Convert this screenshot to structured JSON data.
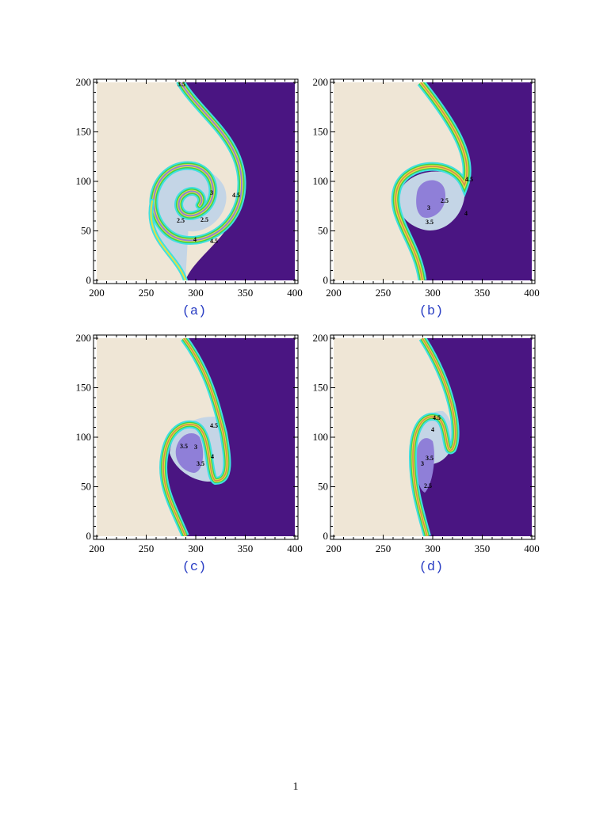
{
  "figures": [
    {
      "caption": "(a)",
      "xlim": [
        200,
        400
      ],
      "ylim": [
        0,
        200
      ],
      "xticks": [
        200,
        250,
        300,
        350,
        400
      ],
      "yticks": [
        0,
        50,
        100,
        150,
        200
      ],
      "contour_labels": [
        3.5,
        3,
        4.5,
        2.5,
        2.5,
        4,
        4.5
      ]
    },
    {
      "caption": "(b)",
      "xlim": [
        200,
        400
      ],
      "ylim": [
        0,
        200
      ],
      "xticks": [
        200,
        250,
        300,
        350,
        400
      ],
      "yticks": [
        0,
        50,
        100,
        150,
        200
      ],
      "contour_labels": [
        4.5,
        2.5,
        3,
        4,
        3.5
      ]
    },
    {
      "caption": "(c)",
      "xlim": [
        200,
        400
      ],
      "ylim": [
        0,
        200
      ],
      "xticks": [
        200,
        250,
        300,
        350,
        400
      ],
      "yticks": [
        0,
        50,
        100,
        150,
        200
      ],
      "contour_labels": [
        4.5,
        3.5,
        3,
        4,
        3.5
      ]
    },
    {
      "caption": "(d)",
      "xlim": [
        200,
        400
      ],
      "ylim": [
        0,
        200
      ],
      "xticks": [
        200,
        250,
        300,
        350,
        400
      ],
      "yticks": [
        0,
        50,
        100,
        150,
        200
      ],
      "contour_labels": [
        4.5,
        4,
        3.5,
        3,
        2.5
      ]
    }
  ],
  "page_number": "1"
}
